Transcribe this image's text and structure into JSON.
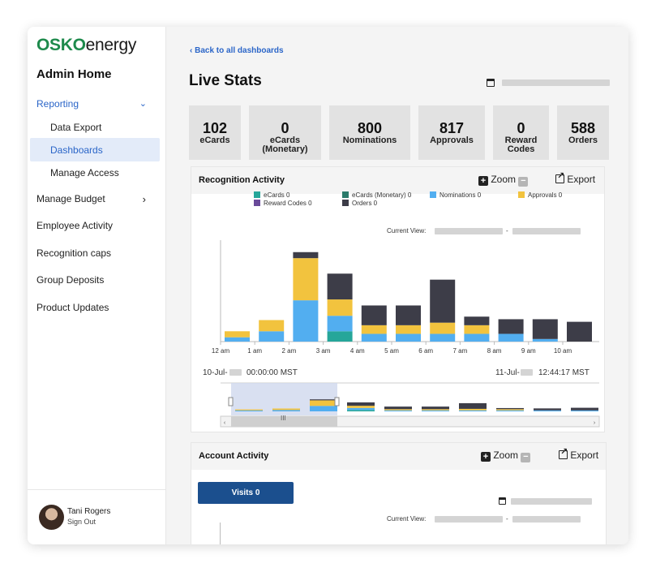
{
  "brand": {
    "logo_primary": "OSKO",
    "logo_secondary": "energy",
    "brand_color": "#1e8a4c"
  },
  "sidebar": {
    "home_title": "Admin Home",
    "reporting": {
      "label": "Reporting",
      "expanded": true,
      "children": [
        "Data Export",
        "Dashboards",
        "Manage Access"
      ],
      "active_child": "Dashboards"
    },
    "items": [
      "Manage Budget",
      "Employee Activity",
      "Recognition caps",
      "Group Deposits",
      "Product Updates"
    ],
    "user": {
      "name": "Tani Rogers",
      "action": "Sign Out"
    }
  },
  "header": {
    "back_label": "Back to all dashboards",
    "title": "Live Stats"
  },
  "stats": [
    {
      "value": "102",
      "label": [
        "eCards"
      ]
    },
    {
      "value": "0",
      "label": [
        "eCards",
        "(Monetary)"
      ]
    },
    {
      "value": "800",
      "label": [
        "Nominations"
      ]
    },
    {
      "value": "817",
      "label": [
        "Approvals"
      ]
    },
    {
      "value": "0",
      "label": [
        "Reward",
        "Codes"
      ]
    },
    {
      "value": "588",
      "label": [
        "Orders"
      ]
    }
  ],
  "recognition_panel": {
    "title": "Recognition Activity",
    "zoom_label": "Zoom",
    "export_label": "Export",
    "current_view_label": "Current View:",
    "range_start": {
      "date": "10-Jul-",
      "time": "00:00:00 MST"
    },
    "range_end": {
      "date": "11-Jul-",
      "time": "12:44:17 MST"
    },
    "navigator_handle": "III"
  },
  "account_panel": {
    "title": "Account Activity",
    "zoom_label": "Zoom",
    "export_label": "Export",
    "visits_label": "Visits 0",
    "current_view_label": "Current View:"
  },
  "chart_data": {
    "type": "bar",
    "stacked": true,
    "categories": [
      "12 am",
      "1 am",
      "2 am",
      "3 am",
      "4 am",
      "5 am",
      "6 am",
      "7 am",
      "8 am",
      "9 am",
      "10 am"
    ],
    "legend": [
      {
        "name": "eCards 0",
        "color": "#26a69a"
      },
      {
        "name": "eCards (Monetary) 0",
        "color": "#2a7a6a"
      },
      {
        "name": "Nominations 0",
        "color": "#52aef0"
      },
      {
        "name": "Approvals 0",
        "color": "#f2c33e"
      },
      {
        "name": "Reward Codes 0",
        "color": "#6a4a9a"
      },
      {
        "name": "Orders 0",
        "color": "#3d3d48"
      }
    ],
    "series": [
      {
        "name": "eCards 0",
        "color": "#26a69a",
        "values": [
          0,
          0,
          0,
          12,
          0,
          0,
          0,
          0,
          0,
          0,
          0
        ]
      },
      {
        "name": "Nominations 0",
        "color": "#52aef0",
        "values": [
          5,
          12,
          48,
          18,
          9,
          9,
          9,
          9,
          9,
          3,
          0
        ]
      },
      {
        "name": "Approvals 0",
        "color": "#f2c33e",
        "values": [
          7,
          13,
          49,
          19,
          10,
          10,
          13,
          10,
          0,
          0,
          0
        ]
      },
      {
        "name": "Orders 0",
        "color": "#3d3d48",
        "values": [
          0,
          0,
          7,
          30,
          23,
          23,
          50,
          10,
          17,
          23,
          23
        ]
      }
    ],
    "legend_placement": "top",
    "grid": false
  }
}
